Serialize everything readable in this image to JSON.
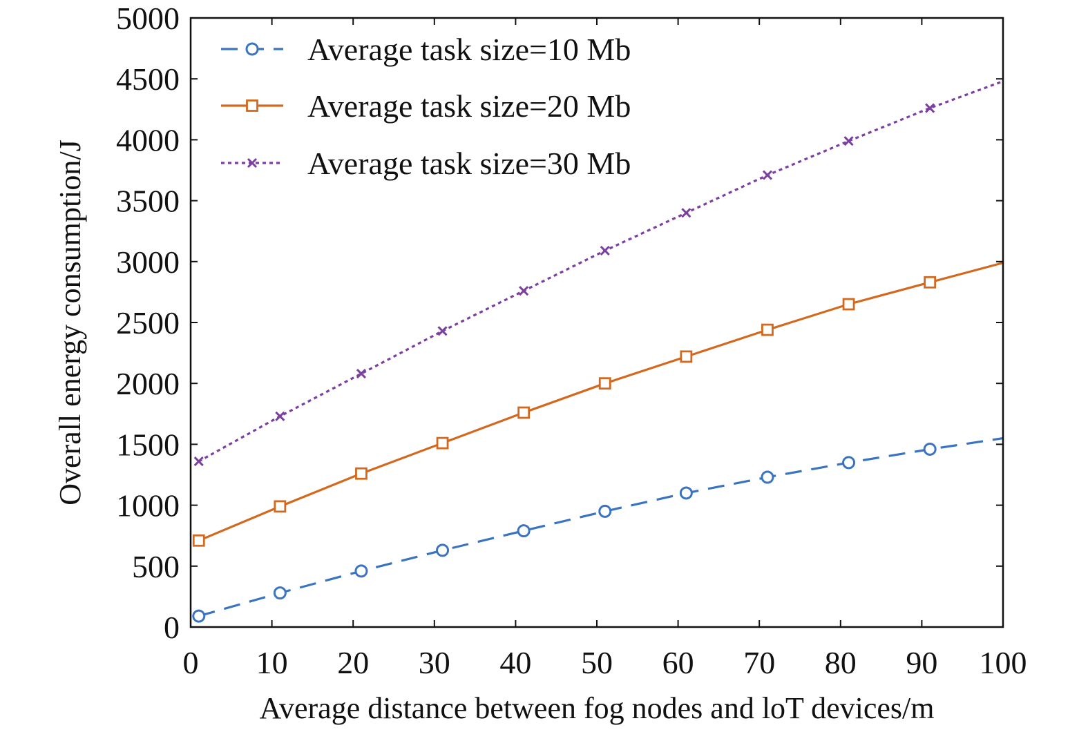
{
  "chart_data": {
    "type": "line",
    "title": "",
    "xlabel": "Average distance between fog nodes and loT devices/m",
    "ylabel": "Overall energy consumption/J",
    "xlim": [
      0,
      100
    ],
    "ylim": [
      0,
      5000
    ],
    "xticks": [
      0,
      10,
      20,
      30,
      40,
      50,
      60,
      70,
      80,
      90,
      100
    ],
    "yticks": [
      0,
      500,
      1000,
      1500,
      2000,
      2500,
      3000,
      3500,
      4000,
      4500,
      5000
    ],
    "grid": false,
    "legend_position": "top-left",
    "series": [
      {
        "name": "Average task size=10 Mb",
        "color": "#3a74c0",
        "line_style": "dashed",
        "marker": "circle",
        "marker_x": [
          1,
          11,
          21,
          31,
          41,
          51,
          61,
          71,
          81,
          91
        ],
        "marker_y": [
          90,
          280,
          460,
          630,
          790,
          950,
          1100,
          1230,
          1350,
          1460
        ],
        "x": [
          1,
          11,
          21,
          31,
          41,
          51,
          61,
          71,
          81,
          91,
          100
        ],
        "y": [
          90,
          280,
          460,
          630,
          790,
          950,
          1100,
          1230,
          1350,
          1460,
          1550
        ]
      },
      {
        "name": "Average task size=20 Mb",
        "color": "#d2691e",
        "line_style": "solid",
        "marker": "square",
        "marker_x": [
          1,
          11,
          21,
          31,
          41,
          51,
          61,
          71,
          81,
          91
        ],
        "marker_y": [
          710,
          990,
          1260,
          1510,
          1760,
          2000,
          2220,
          2440,
          2650,
          2830
        ],
        "x": [
          1,
          11,
          21,
          31,
          41,
          51,
          61,
          71,
          81,
          91,
          100
        ],
        "y": [
          710,
          990,
          1260,
          1510,
          1760,
          2000,
          2220,
          2440,
          2650,
          2830,
          2990
        ]
      },
      {
        "name": "Average task size=30 Mb",
        "color": "#7a3fa0",
        "line_style": "dotted",
        "marker": "x",
        "marker_x": [
          1,
          11,
          21,
          31,
          41,
          51,
          61,
          71,
          81,
          91
        ],
        "marker_y": [
          1360,
          1730,
          2080,
          2430,
          2760,
          3090,
          3400,
          3710,
          3990,
          4260
        ],
        "x": [
          1,
          11,
          21,
          31,
          41,
          51,
          61,
          71,
          81,
          91,
          100
        ],
        "y": [
          1360,
          1730,
          2080,
          2430,
          2760,
          3090,
          3400,
          3710,
          3990,
          4260,
          4480
        ]
      }
    ]
  }
}
